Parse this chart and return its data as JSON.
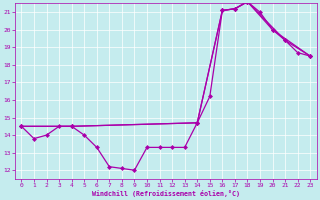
{
  "xlabel": "Windchill (Refroidissement éolien,°C)",
  "xlim": [
    -0.5,
    23.5
  ],
  "ylim": [
    11.5,
    21.5
  ],
  "yticks": [
    12,
    13,
    14,
    15,
    16,
    17,
    18,
    19,
    20,
    21
  ],
  "xticks": [
    0,
    1,
    2,
    3,
    4,
    5,
    6,
    7,
    8,
    9,
    10,
    11,
    12,
    13,
    14,
    15,
    16,
    17,
    18,
    19,
    20,
    21,
    22,
    23
  ],
  "bg_color": "#c5ecee",
  "line_color": "#aa00aa",
  "marker": "D",
  "markersize": 2.0,
  "linewidth": 0.9,
  "line1_x": [
    0,
    1,
    2,
    3,
    4,
    5,
    6,
    7,
    8,
    9,
    10,
    11,
    12,
    13,
    14,
    15,
    16,
    17,
    18,
    19,
    20,
    21,
    22,
    23
  ],
  "line1_y": [
    14.5,
    13.8,
    14.0,
    14.5,
    14.5,
    14.0,
    13.3,
    12.2,
    12.1,
    12.0,
    13.3,
    13.3,
    13.3,
    13.3,
    14.7,
    16.2,
    21.1,
    21.2,
    21.6,
    21.0,
    20.0,
    19.4,
    18.7,
    18.5
  ],
  "line2_x": [
    0,
    4,
    14,
    16,
    17,
    18,
    21,
    23
  ],
  "line2_y": [
    14.5,
    14.5,
    14.7,
    21.1,
    21.2,
    21.6,
    19.4,
    18.5
  ],
  "line3_x": [
    0,
    4,
    14,
    16,
    17,
    18,
    20,
    23
  ],
  "line3_y": [
    14.5,
    14.5,
    14.7,
    21.1,
    21.2,
    21.6,
    20.0,
    18.5
  ]
}
